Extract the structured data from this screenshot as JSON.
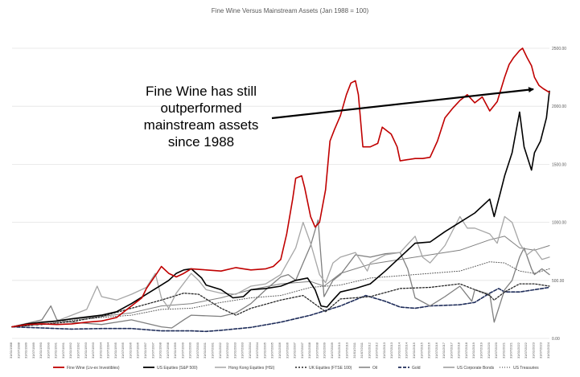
{
  "title": "Fine Wine Versus Mainstream Assets (Jan 1988 = 100)",
  "annotation": {
    "lines": [
      "Fine Wine has still",
      "outperformed",
      "mainstream assets",
      "since 1988"
    ]
  },
  "chart_data": {
    "type": "line",
    "title": "Fine Wine Versus Mainstream Assets (Jan 1988 = 100)",
    "xlabel": "",
    "ylabel": "",
    "xlim": [
      1988.0,
      2024.0
    ],
    "ylim": [
      0,
      2500
    ],
    "y_ticks": [
      0,
      500,
      1000,
      1500,
      2000,
      2500
    ],
    "y_tick_labels": [
      "0.00",
      "500.00",
      "1000.00",
      "1500.00",
      "2000.00",
      "2500.00"
    ],
    "y_axis_side": "right",
    "grid": true,
    "legend": "bottom",
    "x_tick_labels": [
      "31/01/1988",
      "31/07/1988",
      "31/01/1989",
      "31/07/1989",
      "31/01/1990",
      "31/07/1990",
      "31/01/1991",
      "31/07/1991",
      "31/01/1992",
      "31/07/1992",
      "31/01/1993",
      "31/07/1993",
      "31/01/1994",
      "31/07/1994",
      "31/01/1995",
      "31/07/1995",
      "31/01/1996",
      "31/07/1996",
      "31/01/1997",
      "31/07/1997",
      "31/01/1998",
      "31/07/1998",
      "31/01/1999",
      "31/07/1999",
      "31/01/2000",
      "31/07/2000",
      "31/01/2001",
      "31/07/2001",
      "31/01/2002",
      "31/07/2002",
      "31/01/2003",
      "31/07/2003",
      "31/01/2004",
      "31/07/2004",
      "31/01/2005",
      "31/07/2005",
      "31/01/2006",
      "31/07/2006",
      "31/01/2007",
      "31/07/2007",
      "31/01/2008",
      "31/07/2008",
      "31/01/2009",
      "31/07/2009",
      "31/01/2010",
      "31/07/2010",
      "31/01/2011",
      "31/07/2011",
      "31/01/2012",
      "31/07/2012",
      "31/01/2013",
      "31/07/2013",
      "31/01/2014",
      "31/07/2014",
      "31/01/2015",
      "31/07/2015",
      "31/01/2016",
      "31/07/2016",
      "31/01/2017",
      "31/07/2017",
      "31/01/2018",
      "31/07/2018",
      "31/01/2019",
      "31/07/2019",
      "31/01/2020",
      "31/07/2020",
      "31/01/2021",
      "31/07/2021",
      "31/01/2022",
      "31/07/2022",
      "31/01/2023",
      "31/07/2023",
      "31/01/2024"
    ],
    "series": [
      {
        "name": "Fine Wine (Liv-ex Investibles)",
        "color": "#c00000",
        "width": 1.6,
        "dash": "",
        "x": [
          1988,
          1989,
          1990,
          1991,
          1992,
          1993,
          1994,
          1995,
          1995.5,
          1996,
          1996.7,
          1997,
          1997.7,
          1998,
          1998.5,
          1999,
          1999.5,
          2000,
          2001,
          2002,
          2003,
          2003.5,
          2004,
          2005,
          2005.5,
          2006,
          2006.4,
          2006.8,
          2007,
          2007.4,
          2007.6,
          2008,
          2008.3,
          2008.6,
          2009,
          2009.3,
          2009.6,
          2010,
          2010.4,
          2010.7,
          2011,
          2011.2,
          2011.5,
          2012,
          2012.5,
          2012.8,
          2013,
          2013.4,
          2013.8,
          2014,
          2014.5,
          2015,
          2015.5,
          2016,
          2016.5,
          2017,
          2017.5,
          2018,
          2018.5,
          2019,
          2019.5,
          2020,
          2020.5,
          2021,
          2021.3,
          2021.6,
          2022,
          2022.2,
          2022.5,
          2022.8,
          2023,
          2023.3,
          2023.6,
          2024
        ],
        "y": [
          100,
          120,
          125,
          120,
          125,
          140,
          150,
          180,
          230,
          280,
          350,
          430,
          560,
          620,
          560,
          530,
          560,
          600,
          590,
          580,
          610,
          600,
          590,
          600,
          620,
          680,
          900,
          1200,
          1380,
          1400,
          1300,
          1050,
          960,
          1000,
          1280,
          1700,
          1800,
          1920,
          2100,
          2200,
          2220,
          2100,
          1650,
          1650,
          1680,
          1820,
          1800,
          1760,
          1650,
          1530,
          1540,
          1550,
          1550,
          1560,
          1700,
          1900,
          1980,
          2050,
          2100,
          2030,
          2080,
          1960,
          2040,
          2250,
          2360,
          2420,
          2480,
          2500,
          2420,
          2350,
          2250,
          2180,
          2150,
          2120
        ]
      },
      {
        "name": "US Equities (S&P 500)",
        "color": "#000000",
        "width": 1.6,
        "dash": "",
        "x": [
          1988,
          1989,
          1990,
          1991,
          1992,
          1993,
          1994,
          1995,
          1996,
          1997,
          1998,
          1998.5,
          1999,
          1999.5,
          2000,
          2000.7,
          2001,
          2002,
          2002.8,
          2003.5,
          2004,
          2005,
          2006,
          2007,
          2007.8,
          2008.3,
          2008.7,
          2009.1,
          2009.5,
          2010,
          2011,
          2012,
          2013,
          2014,
          2015,
          2016,
          2017,
          2018,
          2019,
          2020,
          2020.3,
          2020.7,
          2021,
          2021.5,
          2022,
          2022.3,
          2022.8,
          2023,
          2023.4,
          2023.8,
          2024
        ],
        "y": [
          100,
          125,
          140,
          150,
          170,
          185,
          200,
          230,
          300,
          380,
          460,
          500,
          560,
          590,
          600,
          520,
          460,
          420,
          350,
          360,
          420,
          430,
          450,
          500,
          520,
          420,
          280,
          270,
          330,
          400,
          430,
          470,
          580,
          700,
          820,
          830,
          920,
          1000,
          1080,
          1200,
          1050,
          1250,
          1400,
          1600,
          1950,
          1650,
          1450,
          1600,
          1700,
          1900,
          2130
        ]
      },
      {
        "name": "Hong Kong Equities (HSI)",
        "color": "#a6a6a6",
        "width": 1.3,
        "dash": "",
        "x": [
          1988,
          1989,
          1989.7,
          1990,
          1991,
          1992,
          1993,
          1993.7,
          1994,
          1995,
          1996,
          1997,
          1997.6,
          1998,
          1998.5,
          1999,
          2000,
          2000.5,
          2001,
          2002,
          2003,
          2004,
          2005,
          2006,
          2007,
          2007.5,
          2008,
          2008.6,
          2009,
          2009.5,
          2010,
          2011,
          2011.8,
          2012,
          2013,
          2014,
          2015,
          2015.5,
          2016,
          2017,
          2018,
          2018.5,
          2019,
          2020,
          2020.5,
          2021,
          2021.5,
          2022,
          2022.5,
          2023,
          2023.5,
          2024
        ],
        "y": [
          100,
          130,
          110,
          130,
          150,
          200,
          250,
          450,
          360,
          330,
          380,
          440,
          560,
          350,
          260,
          390,
          560,
          500,
          420,
          390,
          380,
          450,
          470,
          550,
          780,
          1000,
          820,
          550,
          480,
          650,
          700,
          740,
          580,
          650,
          720,
          740,
          880,
          700,
          650,
          800,
          1050,
          950,
          950,
          900,
          820,
          1050,
          1000,
          820,
          720,
          770,
          680,
          700
        ]
      },
      {
        "name": "UK Equities (FTSE 100)",
        "color": "#262626",
        "width": 1.3,
        "dash": "2,2",
        "x": [
          1988,
          1990,
          1992,
          1994,
          1996,
          1998,
          1999.5,
          2000.5,
          2002,
          2003,
          2004,
          2006,
          2007.5,
          2009,
          2010,
          2012,
          2014,
          2016,
          2018,
          2020,
          2020.3,
          2021,
          2022,
          2023,
          2024
        ],
        "y": [
          100,
          120,
          145,
          190,
          260,
          330,
          390,
          380,
          260,
          200,
          260,
          330,
          370,
          230,
          340,
          360,
          430,
          440,
          470,
          370,
          330,
          400,
          470,
          470,
          450
        ]
      },
      {
        "name": "Oil",
        "color": "#7f7f7f",
        "width": 1.3,
        "dash": "",
        "x": [
          1988,
          1989,
          1990,
          1990.6,
          1991,
          1992,
          1994,
          1996,
          1998,
          1998.7,
          1999.5,
          2000,
          2002,
          2003,
          2004,
          2005,
          2006,
          2006.5,
          2007,
          2007.5,
          2008,
          2008.5,
          2008.9,
          2009.5,
          2010,
          2011,
          2012,
          2013,
          2014,
          2014.5,
          2015,
          2016,
          2017,
          2018,
          2018.8,
          2019,
          2020,
          2020.3,
          2020.6,
          2021,
          2021.5,
          2022,
          2022.3,
          2022.8,
          2023,
          2023.5,
          2024
        ],
        "y": [
          100,
          130,
          160,
          280,
          160,
          140,
          120,
          160,
          100,
          90,
          160,
          200,
          190,
          220,
          300,
          420,
          530,
          550,
          500,
          650,
          800,
          1020,
          360,
          500,
          550,
          720,
          700,
          730,
          740,
          600,
          350,
          280,
          360,
          450,
          320,
          420,
          380,
          140,
          260,
          420,
          500,
          700,
          780,
          600,
          550,
          600,
          550
        ]
      },
      {
        "name": "Gold",
        "color": "#1f2d5a",
        "width": 1.6,
        "dash": "4,2",
        "x": [
          1988,
          1990,
          1992,
          1994,
          1996,
          1998,
          2000,
          2001,
          2002,
          2004,
          2006,
          2008,
          2010,
          2011.7,
          2013,
          2014,
          2015,
          2016,
          2018,
          2019,
          2020,
          2020.6,
          2021,
          2022,
          2023,
          2024
        ],
        "y": [
          100,
          90,
          80,
          85,
          85,
          65,
          65,
          60,
          70,
          95,
          140,
          200,
          280,
          370,
          320,
          270,
          260,
          280,
          290,
          310,
          390,
          430,
          400,
          400,
          420,
          440
        ]
      },
      {
        "name": "US Corporate Bonds",
        "color": "#7f7f7f",
        "width": 1.0,
        "dash": "",
        "x": [
          1988,
          1990,
          1992,
          1994,
          1996,
          1998,
          2000,
          2002,
          2004,
          2006,
          2008,
          2008.9,
          2010,
          2012,
          2014,
          2016,
          2018,
          2020,
          2021,
          2022,
          2023,
          2024
        ],
        "y": [
          100,
          130,
          165,
          190,
          220,
          280,
          300,
          350,
          420,
          470,
          490,
          450,
          560,
          640,
          680,
          720,
          760,
          850,
          880,
          780,
          760,
          800
        ]
      },
      {
        "name": "US Treasuries",
        "color": "#595959",
        "width": 1.0,
        "dash": "1,2",
        "x": [
          1988,
          1990,
          1992,
          1994,
          1996,
          1998,
          2000,
          2002,
          2004,
          2006,
          2008,
          2010,
          2012,
          2014,
          2016,
          2018,
          2020,
          2021,
          2022,
          2023,
          2024
        ],
        "y": [
          100,
          120,
          155,
          180,
          200,
          250,
          260,
          310,
          350,
          370,
          440,
          460,
          520,
          540,
          560,
          580,
          660,
          650,
          580,
          560,
          600
        ]
      }
    ]
  }
}
